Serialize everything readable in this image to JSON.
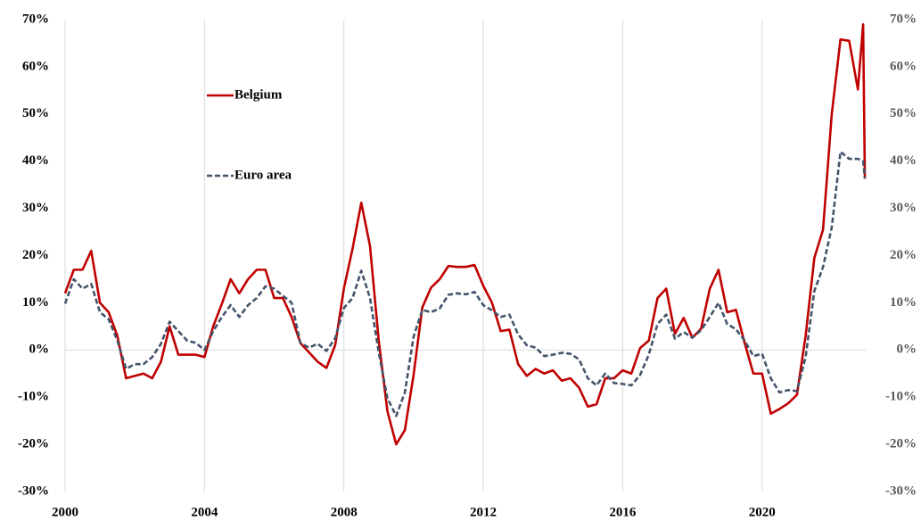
{
  "chart_data": {
    "type": "line",
    "x": [
      2000,
      2000.25,
      2000.5,
      2000.75,
      2001,
      2001.25,
      2001.5,
      2001.75,
      2002,
      2002.25,
      2002.5,
      2002.75,
      2003,
      2003.25,
      2003.5,
      2003.75,
      2004,
      2004.25,
      2004.5,
      2004.75,
      2005,
      2005.25,
      2005.5,
      2005.75,
      2006,
      2006.25,
      2006.5,
      2006.75,
      2007,
      2007.25,
      2007.5,
      2007.75,
      2008,
      2008.25,
      2008.5,
      2008.75,
      2009,
      2009.25,
      2009.5,
      2009.75,
      2010,
      2010.25,
      2010.5,
      2010.75,
      2011,
      2011.25,
      2011.5,
      2011.75,
      2012,
      2012.25,
      2012.5,
      2012.75,
      2013,
      2013.25,
      2013.5,
      2013.75,
      2014,
      2014.25,
      2014.5,
      2014.75,
      2015,
      2015.25,
      2015.5,
      2015.75,
      2016,
      2016.25,
      2016.5,
      2016.75,
      2017,
      2017.25,
      2017.5,
      2017.75,
      2018,
      2018.25,
      2018.5,
      2018.75,
      2019,
      2019.25,
      2019.5,
      2019.75,
      2020,
      2020.25,
      2020.5,
      2020.75,
      2021,
      2021.25,
      2021.5,
      2021.75,
      2022,
      2022.25,
      2022.5,
      2022.75,
      2022.9,
      2022.95
    ],
    "series": [
      {
        "name": "Belgium",
        "color": "#c00000",
        "dash": false,
        "values": [
          12,
          17,
          17,
          21,
          10,
          8,
          3,
          -6,
          -5.5,
          -5,
          -6,
          -2.5,
          5,
          -1,
          -1,
          -1,
          -1.5,
          5,
          9.8,
          15,
          12,
          15,
          17,
          17,
          11,
          11,
          7,
          1.5,
          -0.5,
          -2.5,
          -3.8,
          1,
          13,
          21.5,
          31.2,
          22,
          2,
          -13,
          -20,
          -17,
          -5.3,
          9,
          13.2,
          15,
          17.8,
          17.6,
          17.6,
          18,
          13.6,
          10,
          4,
          4.3,
          -3,
          -5.5,
          -4,
          -5,
          -4.3,
          -6.5,
          -6,
          -8,
          -12,
          -11.5,
          -6,
          -6,
          -4.3,
          -5,
          0.4,
          2,
          11,
          13,
          3.4,
          6.8,
          2.6,
          4.5,
          13,
          17,
          8,
          8.5,
          1.5,
          -5,
          -5,
          -13.5,
          -12.5,
          -11.3,
          -9.5,
          3,
          19.5,
          25.5,
          50,
          65.8,
          65.5,
          55.2,
          69,
          36.3
        ]
      },
      {
        "name": "Euro area",
        "color": "#44546a",
        "dash": true,
        "values": [
          9.8,
          15,
          13,
          14,
          8,
          6.5,
          2,
          -4,
          -3,
          -3,
          -1.5,
          1.3,
          6,
          4,
          2,
          1.5,
          0,
          4,
          7,
          9.5,
          7,
          9.5,
          11,
          13.5,
          13,
          11.5,
          10,
          1.5,
          0.5,
          1.3,
          -0.2,
          2.5,
          8.9,
          11,
          16.8,
          11,
          -0.5,
          -10.2,
          -14,
          -9,
          2.8,
          8.5,
          8,
          8.8,
          11.7,
          12,
          11.8,
          12.3,
          9.5,
          8.4,
          7,
          7.5,
          3.3,
          1,
          0.5,
          -1.3,
          -1,
          -0.6,
          -0.8,
          -2,
          -6,
          -7.5,
          -5,
          -7,
          -7.2,
          -7.5,
          -5.3,
          -1,
          5.5,
          7.5,
          2.4,
          3.8,
          2.6,
          4.2,
          7,
          10,
          5.5,
          4.4,
          2,
          -1.3,
          -0.8,
          -6,
          -9,
          -8.5,
          -8.7,
          -1.5,
          12.5,
          17.6,
          26,
          42,
          40.5,
          40.5,
          40,
          36.3
        ]
      }
    ],
    "xlim": [
      2000,
      2023
    ],
    "xticks": [
      2000,
      2004,
      2008,
      2012,
      2016,
      2020
    ],
    "ylim": [
      -30,
      70
    ],
    "yticks": [
      {
        "value": -30,
        "label": "-30%"
      },
      {
        "value": -20,
        "label": "-20%"
      },
      {
        "value": -10,
        "label": "-10%"
      },
      {
        "value": 0,
        "label": "0%"
      },
      {
        "value": 10,
        "label": "10%"
      },
      {
        "value": 20,
        "label": "20%"
      },
      {
        "value": 30,
        "label": "30%"
      },
      {
        "value": 40,
        "label": "40%"
      },
      {
        "value": 50,
        "label": "50%"
      },
      {
        "value": 60,
        "label": "60%"
      },
      {
        "value": 70,
        "label": "70%"
      }
    ],
    "y2lim": [
      -30,
      70
    ],
    "y2ticks": [
      {
        "value": -30,
        "label": "-30%"
      },
      {
        "value": -20,
        "label": "-20%"
      },
      {
        "value": -10,
        "label": "-10%"
      },
      {
        "value": 0,
        "label": "0%"
      },
      {
        "value": 10,
        "label": "10%"
      },
      {
        "value": 20,
        "label": "20%"
      },
      {
        "value": 30,
        "label": "30%"
      },
      {
        "value": 40,
        "label": "40%"
      },
      {
        "value": 50,
        "label": "50%"
      },
      {
        "value": 60,
        "label": "60%"
      },
      {
        "value": 70,
        "label": "70%"
      }
    ],
    "grid": "x"
  }
}
